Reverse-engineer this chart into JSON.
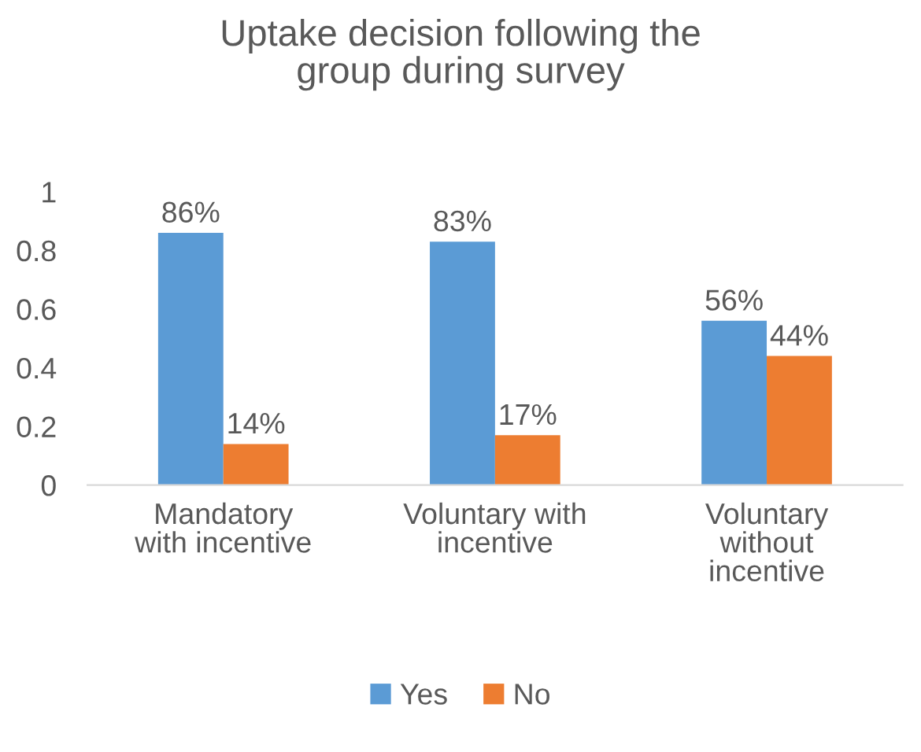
{
  "chart_data": {
    "type": "bar",
    "title": "Uptake decision following the\ngroup during survey",
    "categories": [
      "Mandatory\nwith incentive",
      "Voluntary with\nincentive",
      "Voluntary\nwithout\nincentive"
    ],
    "series": [
      {
        "name": "Yes",
        "color": "#5b9bd5",
        "values": [
          0.86,
          0.83,
          0.56
        ],
        "value_labels": [
          "86%",
          "83%",
          "56%"
        ]
      },
      {
        "name": "No",
        "color": "#ed7d31",
        "values": [
          0.14,
          0.17,
          0.44
        ],
        "value_labels": [
          "14%",
          "17%",
          "44%"
        ]
      }
    ],
    "ylim": [
      0,
      1
    ],
    "yticks": [
      0,
      0.2,
      0.4,
      0.6,
      0.8,
      1
    ],
    "grid": false,
    "legend": "bottom"
  }
}
